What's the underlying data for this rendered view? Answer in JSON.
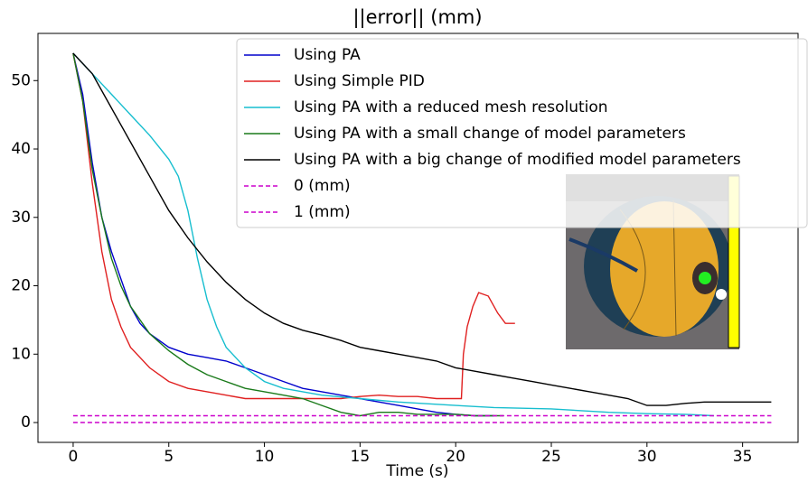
{
  "chart_data": {
    "type": "line",
    "title": "||error|| (mm)",
    "x_label": "Time (s)",
    "xlim": [
      -1.84,
      37.9
    ],
    "ylim": [
      -2.9,
      56.9
    ],
    "xticks": [
      0,
      5,
      10,
      15,
      20,
      25,
      30,
      35
    ],
    "yticks": [
      0,
      10,
      20,
      30,
      40,
      50
    ],
    "grid": false,
    "legend": "upper right",
    "series": [
      {
        "name": "Using PA",
        "color": "#0000cc",
        "dash": false,
        "x": [
          0,
          0.5,
          1,
          1.5,
          2,
          2.5,
          3,
          3.5,
          4,
          5,
          6,
          7,
          8,
          9,
          10,
          11,
          12,
          13,
          14,
          15,
          16,
          17,
          18,
          19,
          20,
          21,
          22
        ],
        "values": [
          54,
          48,
          38,
          30,
          25,
          21,
          17,
          14.5,
          13,
          11,
          10,
          9.5,
          9,
          8,
          7,
          6,
          5,
          4.5,
          4,
          3.5,
          3,
          2.5,
          2,
          1.5,
          1.2,
          1,
          1
        ]
      },
      {
        "name": "Using Simple PID",
        "color": "#e02020",
        "dash": false,
        "x": [
          0,
          0.5,
          1,
          1.5,
          2,
          2.5,
          3,
          4,
          5,
          6,
          7,
          8,
          9,
          10,
          11,
          12,
          13,
          14,
          15,
          16,
          17,
          18,
          19,
          20.3,
          20.4,
          20.6,
          20.9,
          21.2,
          21.7,
          22.2,
          22.6,
          23.1
        ],
        "values": [
          54,
          47,
          35,
          25,
          18,
          14,
          11,
          8,
          6,
          5,
          4.5,
          4,
          3.5,
          3.5,
          3.5,
          3.5,
          3.5,
          3.5,
          3.8,
          4,
          3.8,
          3.8,
          3.5,
          3.5,
          10,
          14,
          17,
          19,
          18.5,
          16,
          14.5,
          14.5
        ]
      },
      {
        "name": "Using PA with a reduced mesh resolution",
        "color": "#17becf",
        "dash": false,
        "x": [
          0,
          1,
          2,
          3,
          4,
          5,
          5.5,
          6,
          6.5,
          7,
          7.5,
          8,
          9,
          10,
          11,
          12,
          13,
          15,
          17,
          20,
          22,
          25,
          28,
          30,
          32,
          33.5
        ],
        "values": [
          54,
          51,
          48,
          45,
          42,
          38.5,
          36,
          31,
          24,
          18,
          14,
          11,
          8,
          6,
          5,
          4.5,
          4,
          3.5,
          3,
          2.5,
          2.2,
          2,
          1.5,
          1.3,
          1.2,
          1
        ]
      },
      {
        "name": "Using PA with a small change of model parameters",
        "color": "#1a7a1a",
        "dash": false,
        "x": [
          0,
          0.5,
          1,
          1.5,
          2,
          2.5,
          3,
          3.5,
          4,
          5,
          6,
          7,
          8,
          9,
          10,
          11,
          12,
          13,
          14,
          15,
          16,
          17,
          18,
          20,
          21,
          22.5
        ],
        "values": [
          54,
          47,
          37,
          30,
          24,
          20,
          17,
          15,
          13,
          10.5,
          8.5,
          7,
          6,
          5,
          4.5,
          4,
          3.5,
          2.5,
          1.5,
          1,
          1.5,
          1.5,
          1.2,
          1.2,
          1,
          1
        ]
      },
      {
        "name": "Using PA with a big change of modified model parameters",
        "color": "#000000",
        "dash": false,
        "x": [
          0,
          1,
          2,
          3,
          4,
          5,
          6,
          7,
          8,
          9,
          10,
          11,
          12,
          13,
          14,
          15,
          16,
          17,
          18,
          19,
          20,
          21,
          22,
          23,
          24,
          25,
          26,
          27,
          28,
          29,
          30,
          31,
          32,
          33,
          34,
          35,
          36,
          36.5
        ],
        "values": [
          54,
          51,
          46,
          41,
          36,
          31,
          27,
          23.5,
          20.5,
          18,
          16,
          14.5,
          13.5,
          12.8,
          12,
          11,
          10.5,
          10,
          9.5,
          9,
          8,
          7.5,
          7,
          6.5,
          6,
          5.5,
          5,
          4.5,
          4,
          3.5,
          2.5,
          2.5,
          2.8,
          3,
          3,
          3,
          3,
          3
        ]
      },
      {
        "name": "0 (mm)",
        "color": "#cc00cc",
        "dash": true,
        "x": [
          0,
          36.5
        ],
        "values": [
          0,
          0
        ]
      },
      {
        "name": "1 (mm)",
        "color": "#cc00cc",
        "dash": true,
        "x": [
          0,
          36.5
        ],
        "values": [
          1,
          1
        ]
      }
    ]
  }
}
